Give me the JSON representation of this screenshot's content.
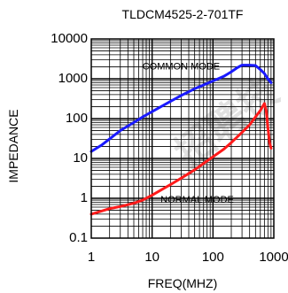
{
  "chart_data": {
    "type": "line",
    "title": "TLDCM4525-2-701TF",
    "xlabel": "FREQ(MHZ)",
    "ylabel": "IMPEDANCE",
    "x_scale": "log",
    "y_scale": "log",
    "xlim": [
      1,
      1000
    ],
    "ylim": [
      0.1,
      10000
    ],
    "x_tick_labels": [
      "1",
      "10",
      "100",
      "1000"
    ],
    "y_tick_labels": [
      "0.1",
      "1",
      "10",
      "100",
      "1000",
      "10000"
    ],
    "grid": true,
    "annotations": [
      {
        "text": "COMMON MODE",
        "x": 30,
        "y": 2000
      },
      {
        "text": "NORMAL MODE",
        "x": 55,
        "y": 0.9
      }
    ],
    "series": [
      {
        "name": "COMMON MODE",
        "color": "#1a1aff",
        "x": [
          1,
          1.5,
          2,
          3,
          5,
          7,
          10,
          20,
          30,
          50,
          70,
          100,
          150,
          200,
          250,
          300,
          350,
          400,
          500,
          600,
          700,
          800,
          900
        ],
        "y": [
          15,
          22,
          31,
          50,
          80,
          110,
          150,
          270,
          380,
          560,
          700,
          880,
          1150,
          1500,
          1900,
          2200,
          2200,
          2200,
          2150,
          1700,
          1350,
          1000,
          800
        ]
      },
      {
        "name": "NORMAL MODE",
        "color": "#ff1a1a",
        "x": [
          1,
          2,
          3,
          5,
          7,
          10,
          20,
          30,
          50,
          70,
          100,
          150,
          200,
          300,
          400,
          500,
          600,
          700,
          750,
          800,
          850,
          900
        ],
        "y": [
          0.4,
          0.55,
          0.62,
          0.75,
          0.9,
          1.2,
          2.2,
          3.2,
          5.2,
          7.5,
          11,
          17,
          25,
          45,
          70,
          110,
          160,
          240,
          160,
          60,
          25,
          18
        ]
      }
    ],
    "watermark": "招聘技"
  }
}
